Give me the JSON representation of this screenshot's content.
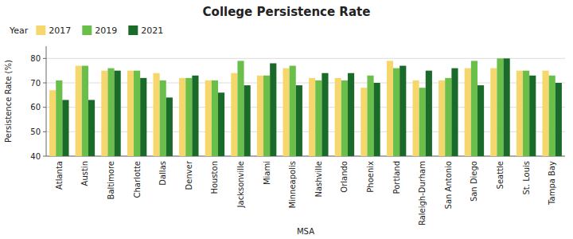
{
  "chart_data": {
    "type": "bar",
    "title": "College Persistence Rate",
    "xlabel": "MSA",
    "ylabel": "Persistence Rate (%)",
    "legend_title": "Year",
    "categories": [
      "Atlanta",
      "Austin",
      "Baltimore",
      "Charlotte",
      "Dallas",
      "Denver",
      "Houston",
      "Jacksonville",
      "Miami",
      "Minneapolis",
      "Nashville",
      "Orlando",
      "Phoenix",
      "Portland",
      "Raleigh-Durham",
      "San Antonio",
      "San Diego",
      "Seattle",
      "St. Louis",
      "Tampa Bay"
    ],
    "series": [
      {
        "name": "2017",
        "color": "#F5D76E",
        "values": [
          67,
          77,
          75,
          75,
          74,
          72,
          71,
          74,
          73,
          76,
          72,
          72,
          68,
          79,
          71,
          71,
          76,
          76,
          75,
          75
        ]
      },
      {
        "name": "2019",
        "color": "#6ABF4B",
        "values": [
          71,
          77,
          76,
          75,
          71,
          72,
          71,
          79,
          73,
          77,
          71,
          71,
          73,
          76,
          68,
          72,
          79,
          80,
          75,
          73
        ]
      },
      {
        "name": "2021",
        "color": "#1A6B2A",
        "values": [
          63,
          63,
          75,
          72,
          64,
          73,
          66,
          69,
          78,
          69,
          74,
          74,
          70,
          77,
          75,
          76,
          69,
          80,
          73,
          70
        ]
      }
    ],
    "ylim": [
      40,
      85
    ],
    "yticks": [
      40,
      50,
      60,
      70,
      80
    ],
    "grid": true,
    "legend": "top-left"
  }
}
